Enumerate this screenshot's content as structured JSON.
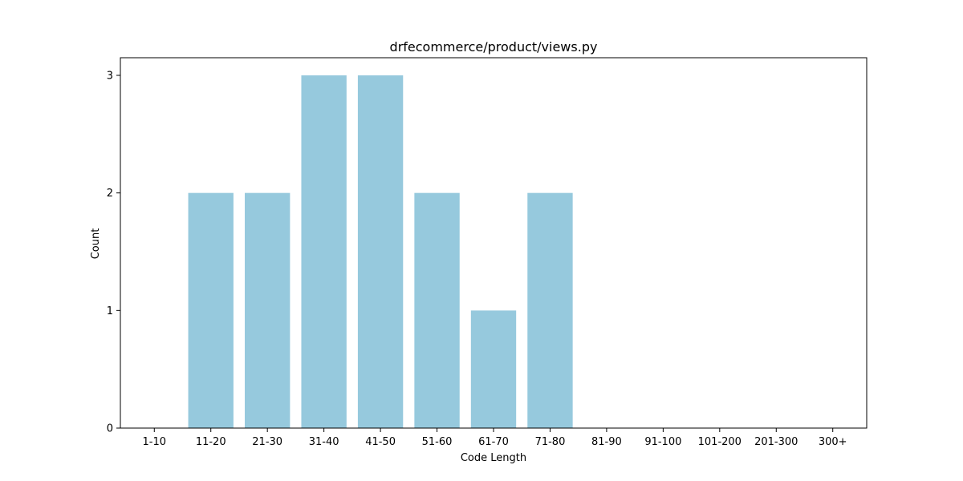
{
  "chart_data": {
    "type": "bar",
    "title": "drfecommerce/product/views.py",
    "xlabel": "Code Length",
    "ylabel": "Count",
    "categories": [
      "1-10",
      "11-20",
      "21-30",
      "31-40",
      "41-50",
      "51-60",
      "61-70",
      "71-80",
      "81-90",
      "91-100",
      "101-200",
      "201-300",
      "300+"
    ],
    "values": [
      0,
      2,
      2,
      3,
      3,
      2,
      1,
      2,
      0,
      0,
      0,
      0,
      0
    ],
    "ylim": [
      0,
      3.15
    ],
    "yticks": [
      0,
      1,
      2,
      3
    ],
    "bar_color": "#96c9dd",
    "grid": false
  }
}
